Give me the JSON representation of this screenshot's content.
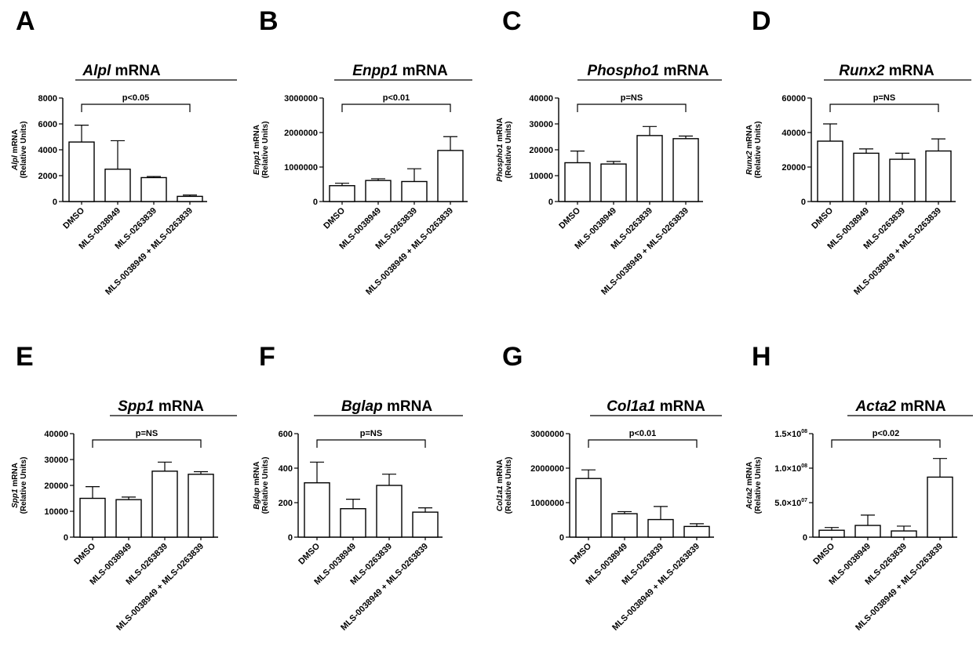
{
  "chart_data": [
    {
      "panel": "A",
      "type": "bar",
      "gene": "Alpl",
      "title_suffix": " mRNA",
      "ylabel_gene": "Alpl",
      "ylabel_line1_suffix": " mRNA",
      "ylabel_line2": "(Relative Units)",
      "categories": [
        "DMSO",
        "MLS-0038949",
        "MLS-0263839",
        "MLS-0038949 + MLS-0263839"
      ],
      "values": [
        4600,
        2500,
        1850,
        400
      ],
      "errors": [
        1300,
        2200,
        80,
        100
      ],
      "ylim": [
        0,
        8000
      ],
      "yticks": [
        0,
        2000,
        4000,
        6000,
        8000
      ],
      "ytick_labels": [
        "0",
        "2000",
        "4000",
        "6000",
        "8000"
      ],
      "pvalue": "p<0.05",
      "bracket": [
        0,
        3
      ]
    },
    {
      "panel": "B",
      "type": "bar",
      "gene": "Enpp1",
      "title_suffix": " mRNA",
      "ylabel_gene": "Enpp1",
      "ylabel_line1_suffix": " mRNA",
      "ylabel_line2": "(Relative Units)",
      "categories": [
        "DMSO",
        "MLS-0038949",
        "MLS-0263839",
        "MLS-0038949 + MLS-0263839"
      ],
      "values": [
        460000,
        610000,
        580000,
        1480000
      ],
      "errors": [
        70000,
        50000,
        370000,
        400000
      ],
      "ylim": [
        0,
        3000000
      ],
      "yticks": [
        0,
        1000000,
        2000000,
        3000000
      ],
      "ytick_labels": [
        "0",
        "1000000",
        "2000000",
        "3000000"
      ],
      "pvalue": "p<0.01",
      "bracket": [
        0,
        3
      ]
    },
    {
      "panel": "C",
      "type": "bar",
      "gene": "Phospho1",
      "title_suffix": " mRNA",
      "ylabel_gene": "Phospho1",
      "ylabel_line1_suffix": " mRNA",
      "ylabel_line2": "(Relative Units)",
      "categories": [
        "DMSO",
        "MLS-0038949",
        "MLS-0263839",
        "MLS-0038949 + MLS-0263839"
      ],
      "values": [
        15000,
        14500,
        25500,
        24300
      ],
      "errors": [
        4500,
        1000,
        3500,
        1000
      ],
      "ylim": [
        0,
        40000
      ],
      "yticks": [
        0,
        10000,
        20000,
        30000,
        40000
      ],
      "ytick_labels": [
        "0",
        "10000",
        "20000",
        "30000",
        "40000"
      ],
      "pvalue": "p=NS",
      "bracket": [
        0,
        3
      ]
    },
    {
      "panel": "D",
      "type": "bar",
      "gene": "Runx2",
      "title_suffix": " mRNA",
      "ylabel_gene": "Runx2",
      "ylabel_line1_suffix": " mRNA",
      "ylabel_line2": "(Relative Units)",
      "categories": [
        "DMSO",
        "MLS-0038949",
        "MLS-0263839",
        "MLS-0038949 + MLS-0263839"
      ],
      "values": [
        35000,
        28000,
        24500,
        29300
      ],
      "errors": [
        10000,
        2500,
        3500,
        7000
      ],
      "ylim": [
        0,
        60000
      ],
      "yticks": [
        0,
        20000,
        40000,
        60000
      ],
      "ytick_labels": [
        "0",
        "20000",
        "40000",
        "60000"
      ],
      "pvalue": "p=NS",
      "bracket": [
        0,
        3
      ]
    },
    {
      "panel": "E",
      "type": "bar",
      "gene": "Spp1",
      "title_suffix": " mRNA",
      "ylabel_gene": "Spp1",
      "ylabel_line1_suffix": " mRNA",
      "ylabel_line2": "(Relative Units)",
      "categories": [
        "DMSO",
        "MLS-0038949",
        "MLS-0263839",
        "MLS-0038949 + MLS-0263839"
      ],
      "values": [
        15000,
        14500,
        25500,
        24300
      ],
      "errors": [
        4500,
        1000,
        3500,
        1000
      ],
      "ylim": [
        0,
        40000
      ],
      "yticks": [
        0,
        10000,
        20000,
        30000,
        40000
      ],
      "ytick_labels": [
        "0",
        "10000",
        "20000",
        "30000",
        "40000"
      ],
      "pvalue": "p=NS",
      "bracket": [
        0,
        3
      ]
    },
    {
      "panel": "F",
      "type": "bar",
      "gene": "Bglap",
      "title_suffix": " mRNA",
      "ylabel_gene": "Bglap",
      "ylabel_line1_suffix": " mRNA",
      "ylabel_line2": "(Relative Units)",
      "categories": [
        "DMSO",
        "MLS-0038949",
        "MLS-0263839",
        "MLS-0038949 + MLS-0263839"
      ],
      "values": [
        315,
        165,
        300,
        145
      ],
      "errors": [
        120,
        55,
        65,
        25
      ],
      "ylim": [
        0,
        600
      ],
      "yticks": [
        0,
        200,
        400,
        600
      ],
      "ytick_labels": [
        "0",
        "200",
        "400",
        "600"
      ],
      "pvalue": "p=NS",
      "bracket": [
        0,
        3
      ]
    },
    {
      "panel": "G",
      "type": "bar",
      "gene": "Col1a1",
      "title_suffix": " mRNA",
      "ylabel_gene": "Col1a1",
      "ylabel_line1_suffix": " mRNA",
      "ylabel_line2": "(Relative Units)",
      "categories": [
        "DMSO",
        "MLS-0038949",
        "MLS-0263839",
        "MLS-0038949 + MLS-0263839"
      ],
      "values": [
        1700000,
        680000,
        510000,
        310000
      ],
      "errors": [
        250000,
        60000,
        380000,
        80000
      ],
      "ylim": [
        0,
        3000000
      ],
      "yticks": [
        0,
        1000000,
        2000000,
        3000000
      ],
      "ytick_labels": [
        "0",
        "1000000",
        "2000000",
        "3000000"
      ],
      "pvalue": "p<0.01",
      "bracket": [
        0,
        3
      ]
    },
    {
      "panel": "H",
      "type": "bar",
      "gene": "Acta2",
      "title_suffix": " mRNA",
      "ylabel_gene": "Acta2",
      "ylabel_line1_suffix": " mRNA",
      "ylabel_line2": "(Relative Units)",
      "categories": [
        "DMSO",
        "MLS-0038949",
        "MLS-0263839",
        "MLS-0038949 + MLS-0263839"
      ],
      "values": [
        10000000,
        17000000,
        9000000,
        87000000
      ],
      "errors": [
        4000000,
        15000000,
        7000000,
        27000000
      ],
      "ylim": [
        0,
        150000000
      ],
      "yticks": [
        0,
        50000000,
        100000000,
        150000000
      ],
      "ytick_labels": [
        {
          "mant": "0",
          "exp": ""
        },
        {
          "mant": "5.0×10",
          "exp": "07"
        },
        {
          "mant": "1.0×10",
          "exp": "08"
        },
        {
          "mant": "1.5×10",
          "exp": "08"
        }
      ],
      "pvalue": "p<0.02",
      "bracket": [
        0,
        3
      ]
    }
  ]
}
